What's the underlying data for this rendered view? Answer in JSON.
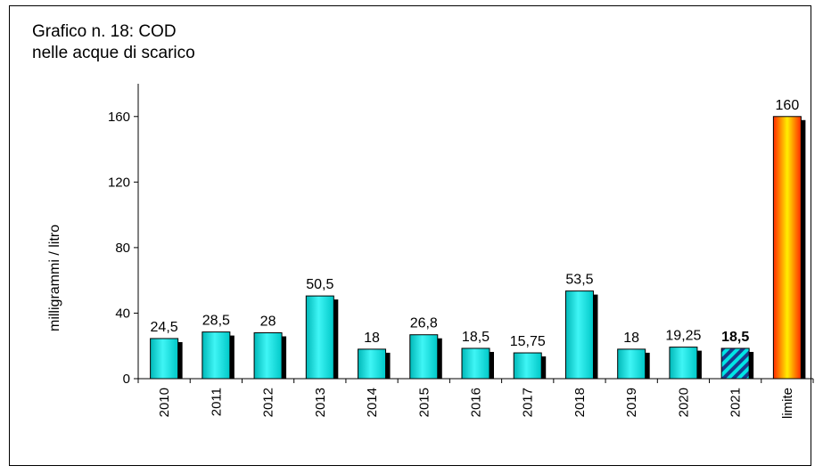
{
  "chart_data": {
    "type": "bar",
    "title_line1": "Grafico n. 18: COD",
    "title_line2": "nelle acque di scarico",
    "xlabel": "",
    "ylabel": "milligrammi / litro",
    "ylim": [
      0,
      180
    ],
    "yticks": [
      0,
      40,
      80,
      120,
      160
    ],
    "grid": false,
    "categories": [
      "2010",
      "2011",
      "2012",
      "2013",
      "2014",
      "2015",
      "2016",
      "2017",
      "2018",
      "2019",
      "2020",
      "2021",
      "limite"
    ],
    "values": [
      24.5,
      28.5,
      28,
      50.5,
      18,
      26.8,
      18.5,
      15.75,
      53.5,
      18,
      19.25,
      18.5,
      160
    ],
    "data_labels": [
      "24,5",
      "28,5",
      "28",
      "50,5",
      "18",
      "26,8",
      "18,5",
      "15,75",
      "53,5",
      "18",
      "19,25",
      "18,5",
      "160"
    ],
    "colors": {
      "bar": "#00e5e5",
      "highlight_stripe": "#1a3a8c",
      "limit_outer": "#ff2200",
      "limit_inner": "#ffee00",
      "shadow": "#000000"
    }
  }
}
